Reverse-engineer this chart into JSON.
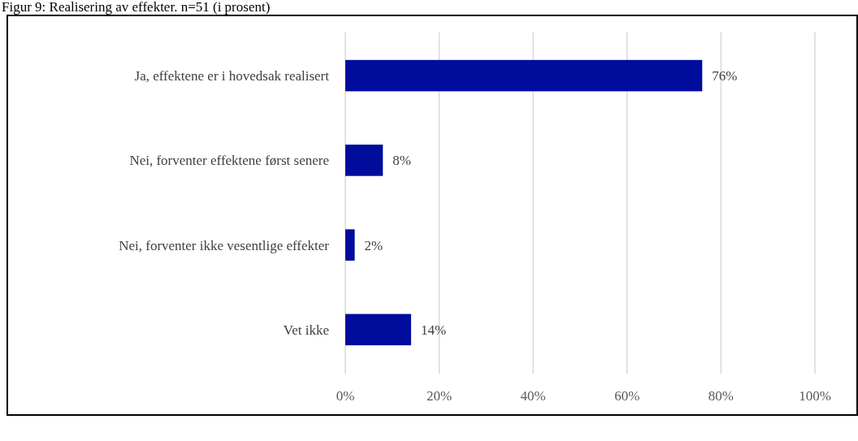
{
  "chart_data": {
    "type": "bar",
    "orientation": "horizontal",
    "title": "Figur 9: Realisering av effekter. n=51 (i prosent)",
    "categories": [
      "Ja, effektene er i hovedsak realisert",
      "Nei, forventer effektene først senere",
      "Nei, forventer ikke vesentlige effekter",
      "Vet ikke"
    ],
    "values": [
      76,
      8,
      2,
      14
    ],
    "color": "#000c9c",
    "value_labels": [
      "76%",
      "8%",
      "2%",
      "14%"
    ],
    "xlim": [
      0,
      100
    ],
    "xticks": [
      {
        "value": 0,
        "label": "0%"
      },
      {
        "value": 20,
        "label": "20%"
      },
      {
        "value": 40,
        "label": "40%"
      },
      {
        "value": 60,
        "label": "60%"
      },
      {
        "value": 80,
        "label": "80%"
      },
      {
        "value": 100,
        "label": "100%"
      }
    ],
    "grid": "x"
  }
}
